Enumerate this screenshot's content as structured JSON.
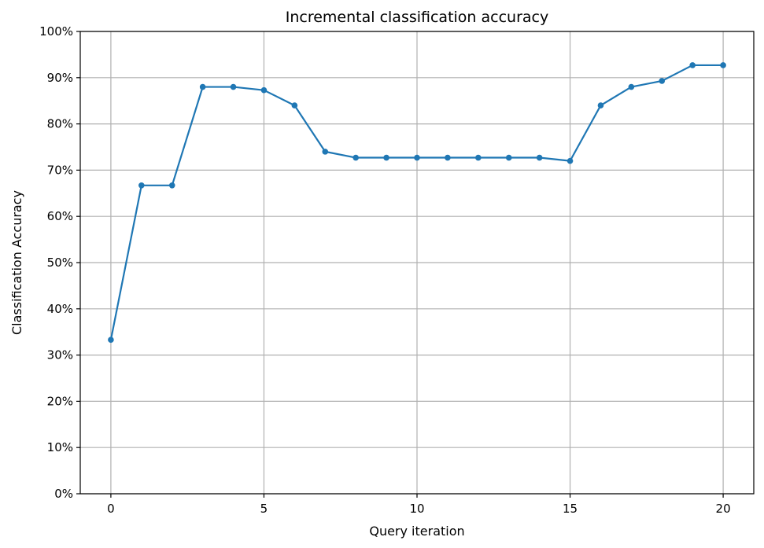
{
  "chart_data": {
    "type": "line",
    "title": "Incremental classification accuracy",
    "xlabel": "Query iteration",
    "ylabel": "Classification Accuracy",
    "xlim": [
      -1,
      21
    ],
    "ylim": [
      0,
      1
    ],
    "xticks": [
      0,
      5,
      10,
      15,
      20
    ],
    "xtick_labels": [
      "0",
      "5",
      "10",
      "15",
      "20"
    ],
    "yticks": [
      0,
      0.1,
      0.2,
      0.3,
      0.4,
      0.5,
      0.6,
      0.7,
      0.8,
      0.9,
      1.0
    ],
    "ytick_labels": [
      "0%",
      "10%",
      "20%",
      "30%",
      "40%",
      "50%",
      "60%",
      "70%",
      "80%",
      "90%",
      "100%"
    ],
    "grid": true,
    "color": "#1f77b4",
    "markers": true,
    "x": [
      0,
      1,
      2,
      3,
      4,
      5,
      6,
      7,
      8,
      9,
      10,
      11,
      12,
      13,
      14,
      15,
      16,
      17,
      18,
      19,
      20
    ],
    "y": [
      0.333,
      0.667,
      0.667,
      0.88,
      0.88,
      0.873,
      0.84,
      0.74,
      0.727,
      0.727,
      0.727,
      0.727,
      0.727,
      0.727,
      0.727,
      0.72,
      0.84,
      0.88,
      0.893,
      0.927,
      0.927
    ]
  }
}
